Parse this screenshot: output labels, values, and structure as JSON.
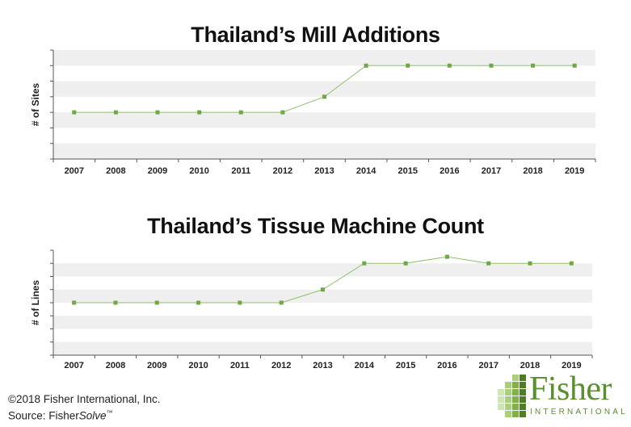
{
  "chart_data": [
    {
      "type": "line",
      "title": "Thailand’s Mill Additions",
      "ylabel": "# of Sites",
      "xlabel": "",
      "categories": [
        "2007",
        "2008",
        "2009",
        "2010",
        "2011",
        "2012",
        "2013",
        "2014",
        "2015",
        "2016",
        "2017",
        "2018",
        "2019"
      ],
      "values": [
        1,
        1,
        1,
        1,
        1,
        1,
        2,
        4,
        4,
        4,
        4,
        4,
        4
      ],
      "ylim": [
        -2,
        5
      ],
      "grid": "alternating horizontal bands",
      "colors": {
        "line": "#8cc06a",
        "marker": "#6fa844",
        "band": "#efefef"
      }
    },
    {
      "type": "line",
      "title": "Thailand’s Tissue Machine Count",
      "ylabel": "# of Lines",
      "xlabel": "",
      "categories": [
        "2007",
        "2008",
        "2009",
        "2010",
        "2011",
        "2012",
        "2013",
        "2014",
        "2015",
        "2016",
        "2017",
        "2018",
        "2019"
      ],
      "values": [
        2,
        2,
        2,
        2,
        2,
        2,
        3,
        5,
        5,
        5.5,
        5,
        5,
        5
      ],
      "ylim": [
        -2,
        6
      ],
      "grid": "alternating horizontal bands",
      "colors": {
        "line": "#8cc06a",
        "marker": "#6fa844",
        "band": "#efefef"
      }
    }
  ],
  "footer": {
    "copyright": "©2018 Fisher International, Inc.",
    "source_prefix": "Source: Fisher",
    "source_italic": "Solve",
    "source_tm": "™"
  },
  "logo": {
    "word": "Fisher",
    "sub": "INTERNATIONAL",
    "colors": {
      "dark": "#4d7f22",
      "light": "#a9cf7d",
      "text": "#5a8f2e"
    }
  }
}
